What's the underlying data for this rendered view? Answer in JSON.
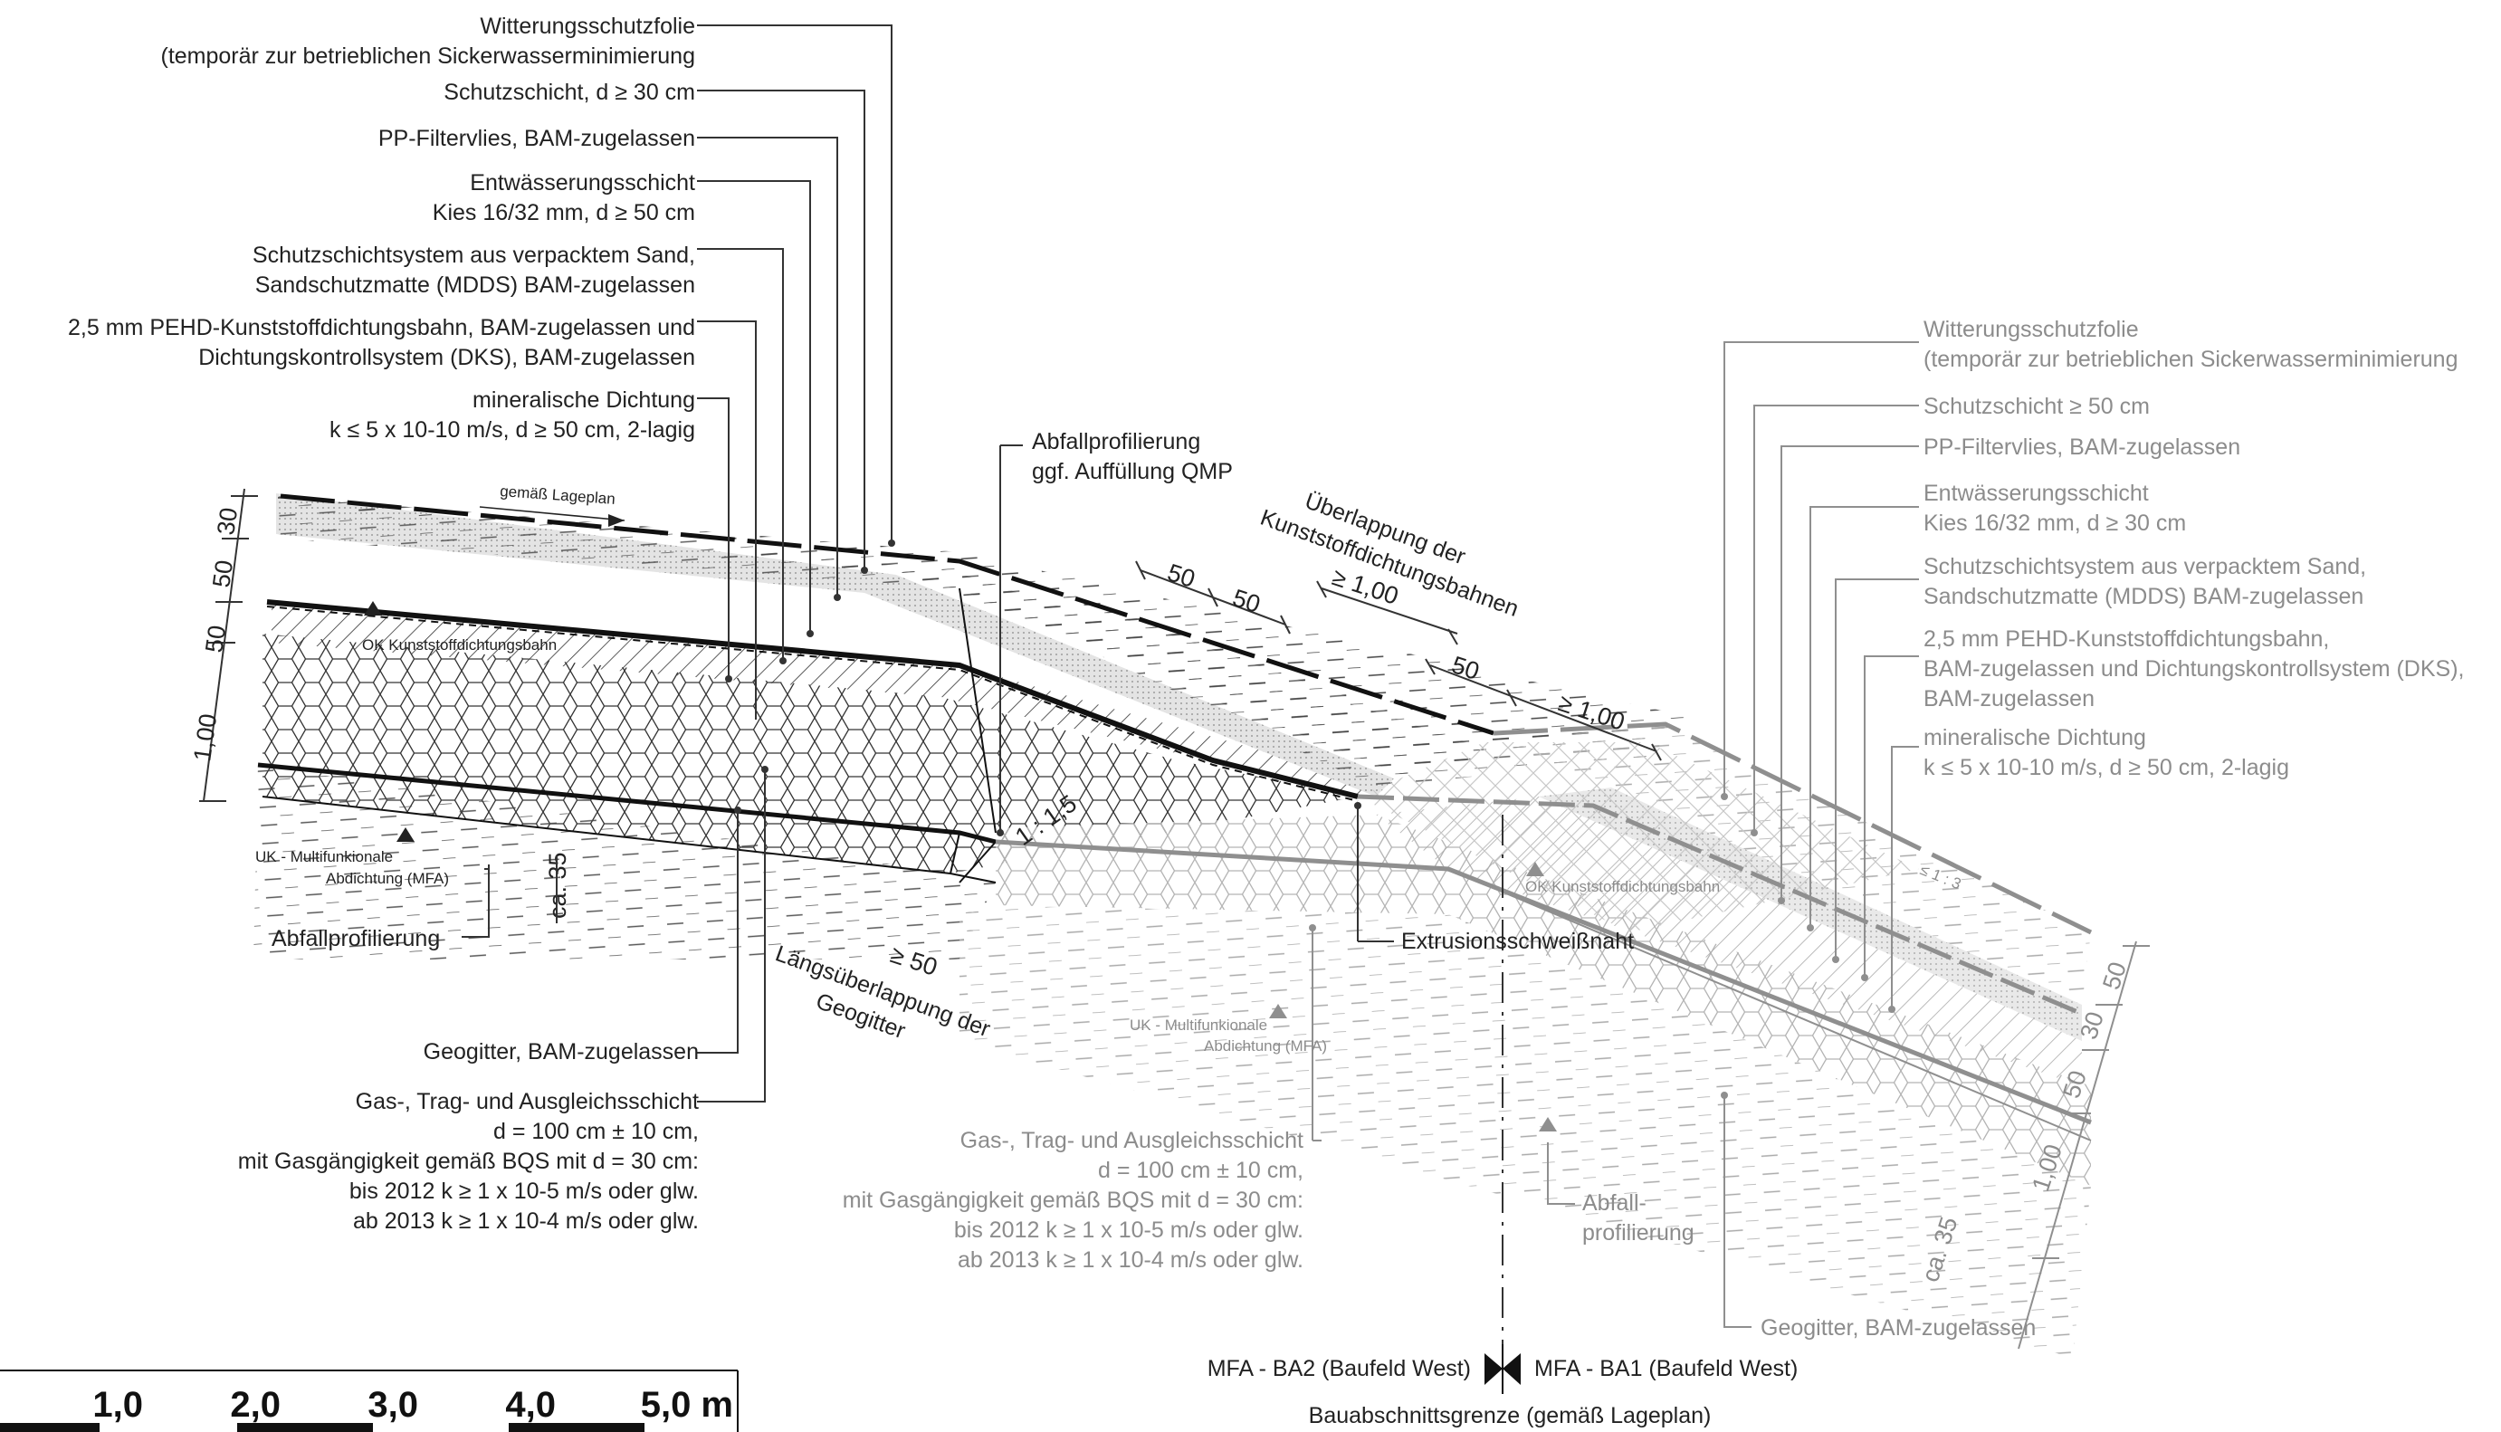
{
  "left_labels": [
    {
      "lines": [
        "Witterungsschutzfolie",
        "(temporär zur betrieblichen Sickerwasserminimierung"
      ]
    },
    {
      "lines": [
        "Schutzschicht, d ≥ 30 cm"
      ]
    },
    {
      "lines": [
        "PP-Filtervlies, BAM-zugelassen"
      ]
    },
    {
      "lines": [
        "Entwässerungsschicht",
        "Kies 16/32 mm, d ≥ 50 cm"
      ]
    },
    {
      "lines": [
        "Schutzschichtsystem aus verpacktem Sand,",
        "Sandschutzmatte (MDDS) BAM-zugelassen"
      ]
    },
    {
      "lines": [
        "2,5 mm PEHD-Kunststoffdichtungsbahn, BAM-zugelassen und",
        "Dichtungskontrollsystem (DKS), BAM-zugelassen"
      ]
    },
    {
      "lines": [
        "mineralische Dichtung",
        "k ≤ 5 x 10-10 m/s, d ≥ 50 cm, 2-lagig"
      ]
    }
  ],
  "right_labels": [
    {
      "lines": [
        "Witterungsschutzfolie",
        "(temporär zur betrieblichen Sickerwasserminimierung"
      ]
    },
    {
      "lines": [
        "Schutzschicht ≥ 50 cm"
      ]
    },
    {
      "lines": [
        "PP-Filtervlies, BAM-zugelassen"
      ]
    },
    {
      "lines": [
        "Entwässerungsschicht",
        "Kies 16/32 mm, d ≥ 30 cm"
      ]
    },
    {
      "lines": [
        "Schutzschichtsystem aus verpacktem Sand,",
        "Sandschutzmatte (MDDS) BAM-zugelassen"
      ]
    },
    {
      "lines": [
        "2,5 mm PEHD-Kunststoffdichtungsbahn,",
        "BAM-zugelassen und Dichtungskontrollsystem (DKS),",
        "BAM-zugelassen"
      ]
    },
    {
      "lines": [
        "mineralische Dichtung",
        "k ≤ 5 x 10-10 m/s, d ≥ 50 cm, 2-lagig"
      ]
    }
  ],
  "mid_labels": {
    "abfallprofilierung_top": [
      "Abfallprofilierung",
      "ggf. Auffüllung QMP"
    ],
    "ueberlappung": [
      "Überlappung der",
      "Kunststoffdichtungsbahnen"
    ],
    "extrusion": "Extrusionsschweißnaht",
    "laengsueberlappung": [
      "Längsüberlappung der",
      "Geogitter"
    ],
    "gemaess_lageplan": "gemäß Lageplan",
    "ok_kdb_left": "OK Kunststoffdichtungsbahn",
    "ok_kdb_right": "OK Kunststoffdichtungsbahn",
    "uk_mfa_left": [
      "UK - Multifunkionale",
      "Abdichtung (MFA)"
    ],
    "uk_mfa_right": [
      "UK - Multifunkionale",
      "Abdichtung (MFA)"
    ],
    "abfallprofilierung_left": "Abfallprofilierung",
    "abfallprofilierung_right": [
      "Abfall-",
      "profilierung"
    ],
    "slope_1_15": "1 : 1,5",
    "slope_1_3": "≤ 1 : 3",
    "ca35_left": "ca. 35",
    "ca35_right": "ca. 35"
  },
  "bottom_left": {
    "geogitter": "Geogitter, BAM-zugelassen",
    "gas_lines": [
      "Gas-, Trag- und Ausgleichsschicht",
      "d = 100 cm ± 10 cm,",
      "mit Gasgängigkeit gemäß BQS mit d = 30 cm:",
      "bis 2012 k ≥ 1 x 10-5 m/s oder glw.",
      "ab 2013 k ≥ 1 x 10-4 m/s oder glw."
    ]
  },
  "bottom_right": {
    "gas_lines": [
      "Gas-, Trag- und Ausgleichsschicht",
      "d = 100 cm ± 10 cm,",
      "mit Gasgängigkeit gemäß BQS mit d = 30 cm:",
      "bis 2012 k ≥ 1 x 10-5 m/s oder glw.",
      "ab 2013 k ≥ 1 x 10-4 m/s oder glw."
    ],
    "geogitter": "Geogitter, BAM-zugelassen"
  },
  "dimensions": {
    "left": [
      "30",
      "50",
      "50",
      "1,00"
    ],
    "top": [
      "50",
      "50",
      "≥ 1,00",
      "50",
      "≥ 1,00",
      "≥ 50"
    ],
    "right": [
      "50",
      "30",
      "50",
      "1,00"
    ]
  },
  "boundary": {
    "left": "MFA - BA2 (Baufeld West)",
    "right": "MFA - BA1 (Baufeld West)",
    "caption": "Bauabschnittsgrenze (gemäß Lageplan)"
  },
  "scale_labels": [
    "1,0",
    "2,0",
    "3,0",
    "4,0",
    "5,0 m"
  ],
  "colors": {
    "ink": "#222222",
    "ink_grey": "#8c8c8c",
    "sand_fill": "#e4e4e4"
  }
}
